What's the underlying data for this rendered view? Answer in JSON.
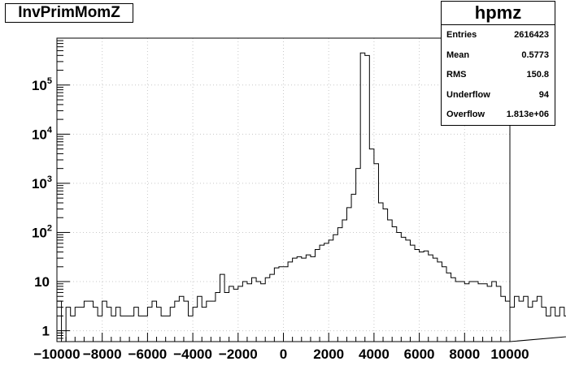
{
  "title": "InvPrimMomZ",
  "stats": {
    "name": "hpmz",
    "rows": [
      {
        "label": "Entries",
        "value": "2616423"
      },
      {
        "label": "Mean",
        "value": "0.5773"
      },
      {
        "label": "RMS",
        "value": "150.8"
      },
      {
        "label": "Underflow",
        "value": "94"
      },
      {
        "label": "Overflow",
        "value": "1.813e+06"
      }
    ]
  },
  "chart_data": {
    "type": "bar",
    "title": "InvPrimMomZ",
    "xlabel": "",
    "ylabel": "",
    "xlim": [
      -10000,
      10000
    ],
    "ylim": [
      0.6,
      900000
    ],
    "yscale": "log",
    "grid": true,
    "bin_width": 200,
    "x_ticks": [
      -10000,
      -8000,
      -6000,
      -4000,
      -2000,
      0,
      2000,
      4000,
      6000,
      8000,
      10000
    ],
    "x_tick_labels": [
      "−10000",
      "−8000",
      "−6000",
      "−4000",
      "−2000",
      "0",
      "2000",
      "4000",
      "6000",
      "8000",
      "10000"
    ],
    "y_ticks": [
      1,
      10,
      100,
      1000,
      10000,
      100000
    ],
    "y_tick_labels": [
      {
        "base": "1",
        "exp": ""
      },
      {
        "base": "10",
        "exp": ""
      },
      {
        "base": "10",
        "exp": "2"
      },
      {
        "base": "10",
        "exp": "3"
      },
      {
        "base": "10",
        "exp": "4"
      },
      {
        "base": "10",
        "exp": "5"
      }
    ],
    "values": [
      4,
      0,
      3,
      2,
      3,
      3,
      4,
      4,
      3,
      2,
      4,
      3,
      2,
      3,
      2,
      2,
      2,
      3,
      2,
      2,
      3,
      4,
      3,
      2,
      2,
      3,
      4,
      5,
      4,
      2,
      3,
      5,
      3,
      4,
      4,
      6,
      14,
      6,
      8,
      7,
      8,
      10,
      9,
      12,
      10,
      9,
      12,
      14,
      19,
      20,
      20,
      25,
      30,
      32,
      30,
      35,
      32,
      45,
      55,
      60,
      70,
      90,
      125,
      180,
      320,
      600,
      2000,
      450000,
      400000,
      5000,
      2500,
      400,
      300,
      180,
      130,
      100,
      80,
      70,
      55,
      45,
      40,
      42,
      35,
      30,
      25,
      20,
      15,
      12,
      10,
      10,
      9,
      10,
      10,
      9,
      9,
      8,
      10,
      8,
      5,
      4,
      3,
      5,
      4,
      5,
      3,
      4,
      5,
      3,
      2,
      3,
      2,
      3,
      2,
      3,
      2,
      6,
      3,
      2,
      3,
      4,
      2,
      2,
      4,
      4,
      3,
      2,
      1,
      1
    ]
  }
}
